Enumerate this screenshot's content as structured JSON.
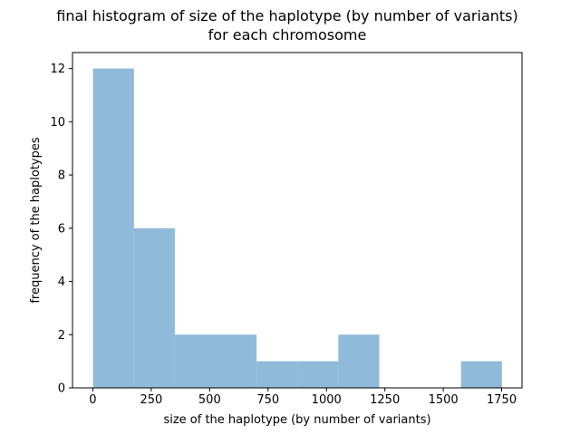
{
  "chart_data": {
    "type": "bar",
    "title_lines": [
      "final histogram of size of the haplotype (by number of variants)",
      "for each chromosome"
    ],
    "xlabel": "size of the haplotype (by number of variants)",
    "ylabel": "frequency of the haplotypes",
    "xlim": [
      -87,
      1837
    ],
    "ylim": [
      0,
      12.6
    ],
    "xticks": [
      0,
      250,
      500,
      750,
      1000,
      1250,
      1500,
      1750
    ],
    "yticks": [
      0,
      2,
      4,
      6,
      8,
      10,
      12
    ],
    "grid": false,
    "bin_edges": [
      1,
      176,
      351,
      526,
      701,
      876,
      1051,
      1226,
      1401,
      1576,
      1751
    ],
    "values": [
      12,
      6,
      2,
      2,
      1,
      1,
      2,
      0,
      0,
      1
    ],
    "bar_color": "#8fbad9",
    "axis_color": "#000000"
  }
}
